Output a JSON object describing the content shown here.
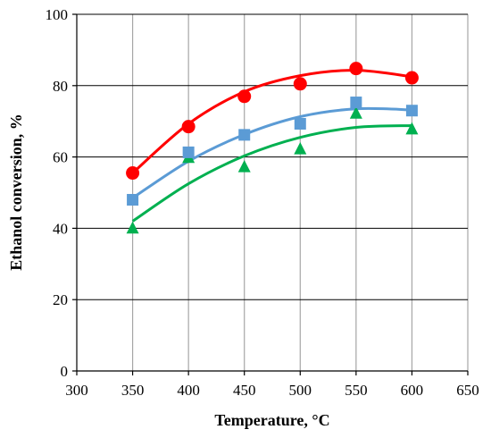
{
  "chart_data": {
    "type": "scatter",
    "title": "",
    "xlabel": "Temperature, °C",
    "ylabel": "Ethanol conversion, %",
    "xlim": [
      300,
      650
    ],
    "ylim": [
      0,
      100
    ],
    "x_ticks": [
      300,
      350,
      400,
      450,
      500,
      550,
      600,
      650
    ],
    "y_ticks": [
      0,
      20,
      40,
      60,
      80,
      100
    ],
    "grid": {
      "horizontal": true,
      "vertical": true
    },
    "legend": "none",
    "series": [
      {
        "color": "#ff0000",
        "marker": "circle",
        "x": [
          350,
          400,
          450,
          500,
          550,
          600
        ],
        "y": [
          55.5,
          68.5,
          77,
          80.5,
          84.8,
          82.2
        ],
        "trend": {
          "type": "polynomial-2",
          "x": [
            350,
            400,
            450,
            500,
            550,
            600
          ],
          "y": [
            55.5,
            69.3,
            78.3,
            82.8,
            84.3,
            82.5
          ]
        }
      },
      {
        "color": "#5b9bd5",
        "marker": "square",
        "x": [
          350,
          400,
          450,
          500,
          550,
          600
        ],
        "y": [
          48,
          61.3,
          66.2,
          69.3,
          75.3,
          73
        ],
        "trend": {
          "type": "polynomial-2",
          "x": [
            350,
            400,
            450,
            500,
            550,
            600
          ],
          "y": [
            48.5,
            58.8,
            66.3,
            71.3,
            73.5,
            73.2
          ]
        }
      },
      {
        "color": "#00b050",
        "marker": "triangle",
        "x": [
          350,
          400,
          450,
          500,
          550,
          600
        ],
        "y": [
          40,
          59.8,
          57.2,
          62.2,
          72.2,
          67.8
        ],
        "trend": {
          "type": "polynomial-2",
          "x": [
            350,
            400,
            450,
            500,
            550,
            600
          ],
          "y": [
            42,
            52.5,
            60.3,
            65.5,
            68.3,
            68.8
          ]
        }
      }
    ]
  }
}
